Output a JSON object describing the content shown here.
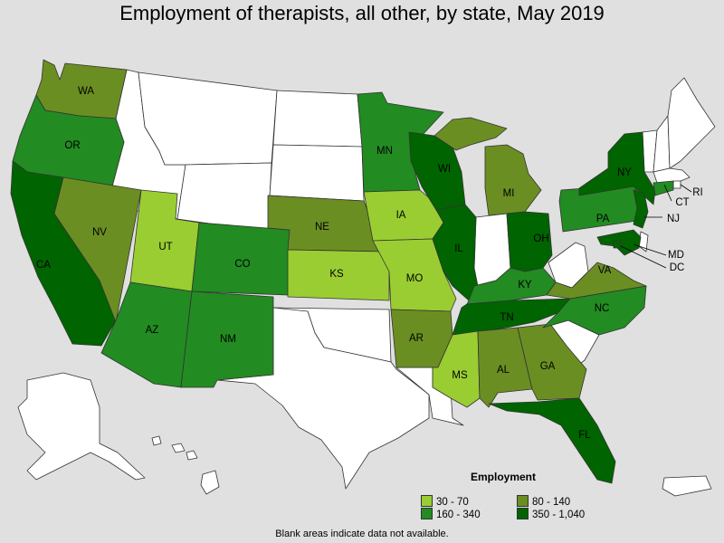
{
  "title": "Employment of therapists, all other, by state, May 2019",
  "footnote": "Blank areas indicate data not available.",
  "legend": {
    "title": "Employment",
    "items": [
      {
        "label": "30 - 70",
        "color": "#9acd32"
      },
      {
        "label": "80 - 140",
        "color": "#6b8e23"
      },
      {
        "label": "160 - 340",
        "color": "#228b22"
      },
      {
        "label": "350 - 1,040",
        "color": "#006400"
      }
    ]
  },
  "colors": {
    "nodata": "#ffffff",
    "c1": "#9acd32",
    "c2": "#6b8e23",
    "c3": "#228b22",
    "c4": "#006400",
    "background": "#e0e0e0"
  },
  "states": [
    {
      "code": "WA",
      "label": "WA",
      "category": "80 - 140"
    },
    {
      "code": "OR",
      "label": "OR",
      "category": "160 - 340"
    },
    {
      "code": "CA",
      "label": "CA",
      "category": "350 - 1,040"
    },
    {
      "code": "NV",
      "label": "NV",
      "category": "80 - 140"
    },
    {
      "code": "UT",
      "label": "UT",
      "category": "30 - 70"
    },
    {
      "code": "AZ",
      "label": "AZ",
      "category": "160 - 340"
    },
    {
      "code": "CO",
      "label": "CO",
      "category": "160 - 340"
    },
    {
      "code": "NM",
      "label": "NM",
      "category": "160 - 340"
    },
    {
      "code": "NE",
      "label": "NE",
      "category": "80 - 140"
    },
    {
      "code": "KS",
      "label": "KS",
      "category": "30 - 70"
    },
    {
      "code": "MN",
      "label": "MN",
      "category": "160 - 340"
    },
    {
      "code": "IA",
      "label": "IA",
      "category": "30 - 70"
    },
    {
      "code": "MO",
      "label": "MO",
      "category": "30 - 70"
    },
    {
      "code": "AR",
      "label": "AR",
      "category": "80 - 140"
    },
    {
      "code": "WI",
      "label": "WI",
      "category": "350 - 1,040"
    },
    {
      "code": "IL",
      "label": "IL",
      "category": "350 - 1,040"
    },
    {
      "code": "MI",
      "label": "MI",
      "category": "80 - 140"
    },
    {
      "code": "OH",
      "label": "OH",
      "category": "350 - 1,040"
    },
    {
      "code": "KY",
      "label": "KY",
      "category": "160 - 340"
    },
    {
      "code": "TN",
      "label": "TN",
      "category": "350 - 1,040"
    },
    {
      "code": "MS",
      "label": "MS",
      "category": "30 - 70"
    },
    {
      "code": "AL",
      "label": "AL",
      "category": "80 - 140"
    },
    {
      "code": "GA",
      "label": "GA",
      "category": "80 - 140"
    },
    {
      "code": "FL",
      "label": "FL",
      "category": "350 - 1,040"
    },
    {
      "code": "NC",
      "label": "NC",
      "category": "160 - 340"
    },
    {
      "code": "VA",
      "label": "VA",
      "category": "80 - 140"
    },
    {
      "code": "PA",
      "label": "PA",
      "category": "160 - 340"
    },
    {
      "code": "NY",
      "label": "NY",
      "category": "350 - 1,040"
    },
    {
      "code": "NJ",
      "label": "NJ",
      "category": "350 - 1,040"
    },
    {
      "code": "MD",
      "label": "MD",
      "category": "350 - 1,040"
    },
    {
      "code": "DC",
      "label": "DC",
      "category": "350 - 1,040"
    },
    {
      "code": "CT",
      "label": "CT",
      "category": "160 - 340"
    },
    {
      "code": "RI",
      "label": "RI",
      "category": ""
    }
  ]
}
